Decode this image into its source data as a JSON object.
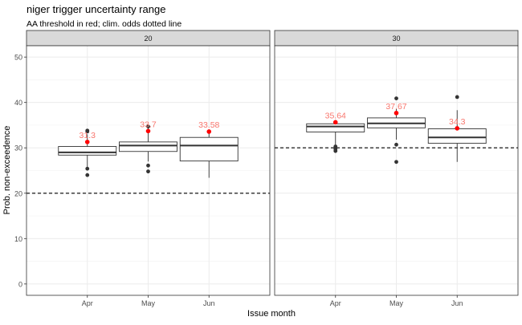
{
  "chart_data": {
    "type": "boxplot",
    "title": "niger trigger uncertainty range",
    "subtitle": "AA threshold in red; clim. odds dotted line",
    "xlabel": "Issue month",
    "ylabel": "Prob. non-exceedence",
    "ylim": [
      -2.5,
      52.5
    ],
    "yticks": [
      0,
      10,
      20,
      30,
      40,
      50
    ],
    "categories": [
      "Apr",
      "May",
      "Jun"
    ],
    "grid": true,
    "colors": {
      "threshold": "#ff0000",
      "label": "#f8766d",
      "box": "#333333",
      "strip": "#d9d9d9"
    },
    "facets": [
      {
        "strip_label": "20",
        "clim_odds": 20,
        "boxes": [
          {
            "category": "Apr",
            "whisker_low": 25.6,
            "q1": 28.4,
            "median": 29.0,
            "q3": 30.3,
            "whisker_high": 33.0,
            "outliers": [
              24.0,
              25.4,
              33.6,
              33.8
            ],
            "threshold": 31.3,
            "threshold_label": "31.3"
          },
          {
            "category": "May",
            "whisker_low": 27.0,
            "q1": 29.2,
            "median": 30.5,
            "q3": 31.3,
            "whisker_high": 34.4,
            "outliers": [
              24.8,
              26.1,
              34.7
            ],
            "threshold": 33.7,
            "threshold_label": "33.7"
          },
          {
            "category": "Jun",
            "whisker_low": 23.4,
            "q1": 27.1,
            "median": 30.5,
            "q3": 32.3,
            "whisker_high": 33.4,
            "outliers": [],
            "threshold": 33.58,
            "threshold_label": "33.58"
          }
        ]
      },
      {
        "strip_label": "30",
        "clim_odds": 30,
        "boxes": [
          {
            "category": "Apr",
            "whisker_low": 30.7,
            "q1": 33.5,
            "median": 34.7,
            "q3": 35.3,
            "whisker_high": 36.0,
            "outliers": [
              29.3,
              29.7,
              30.3
            ],
            "threshold": 35.64,
            "threshold_label": "35.64"
          },
          {
            "category": "May",
            "whisker_low": 31.8,
            "q1": 34.4,
            "median": 35.4,
            "q3": 36.6,
            "whisker_high": 38.6,
            "outliers": [
              26.9,
              30.7,
              40.9
            ],
            "threshold": 37.67,
            "threshold_label": "37.67"
          },
          {
            "category": "Jun",
            "whisker_low": 26.9,
            "q1": 31.0,
            "median": 32.3,
            "q3": 34.2,
            "whisker_high": 38.3,
            "outliers": [
              41.2
            ],
            "threshold": 34.3,
            "threshold_label": "34.3"
          }
        ]
      }
    ]
  }
}
